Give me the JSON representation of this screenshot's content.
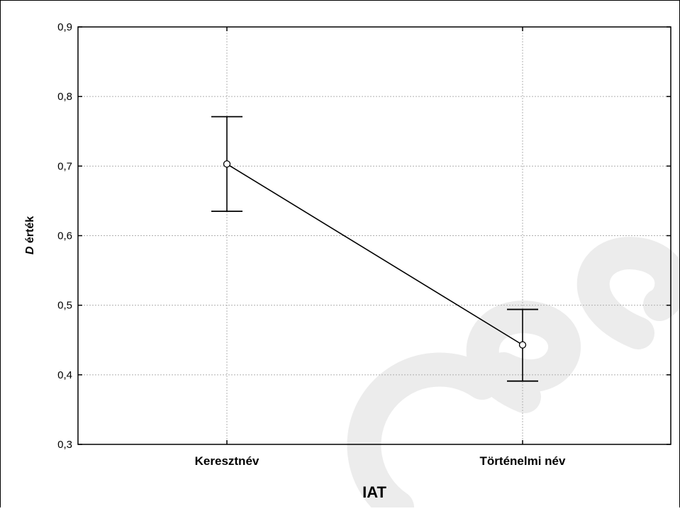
{
  "chart_data": {
    "type": "line",
    "categories": [
      "Keresztnév",
      "Történelmi név"
    ],
    "series": [
      {
        "values": [
          0.703,
          0.443
        ],
        "error_upper": [
          0.771,
          0.494
        ],
        "error_lower": [
          0.635,
          0.391
        ]
      }
    ],
    "xlabel": "IAT",
    "ylabel_italic": "D",
    "ylabel_rest": "érték",
    "ylim": [
      0.3,
      0.9
    ],
    "yticks": [
      "0,3",
      "0,4",
      "0,5",
      "0,6",
      "0,7",
      "0,8",
      "0,9"
    ],
    "grid": true,
    "legend": "none",
    "colors": {
      "line": "#000000",
      "grid": "#b0b0b0",
      "marker_fill": "#ffffff",
      "watermark": "#e8e8e8"
    }
  }
}
